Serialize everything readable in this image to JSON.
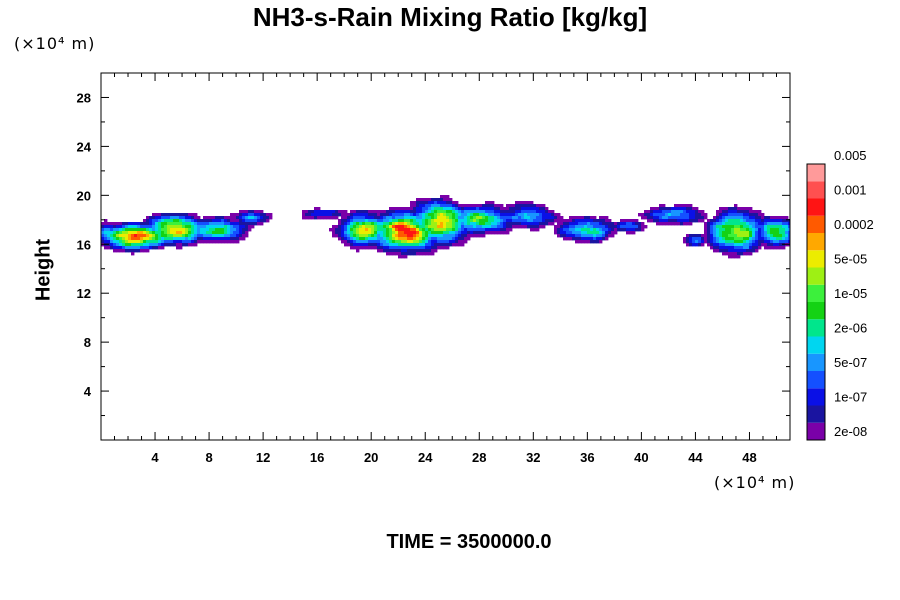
{
  "chart_data": {
    "type": "heatmap",
    "title": "NH3-s-Rain Mixing Ratio [kg/kg]",
    "y_unit_label": "(×10⁴ m)",
    "x_unit_label": "(×10⁴ m)",
    "ylabel": "Height",
    "xlabel": "",
    "footer": "TIME = 3500000.0",
    "xlim": [
      0,
      51
    ],
    "ylim": [
      0,
      30
    ],
    "x_ticks": [
      4,
      8,
      12,
      16,
      20,
      24,
      28,
      32,
      36,
      40,
      44,
      48
    ],
    "y_ticks": [
      4,
      8,
      12,
      16,
      20,
      24,
      28
    ],
    "colorbar": {
      "colors": [
        "#7a00a8",
        "#1a14a0",
        "#0a10e6",
        "#1450ff",
        "#1896ff",
        "#00d6f0",
        "#00e68c",
        "#14d214",
        "#3cf03c",
        "#9ef014",
        "#ecec00",
        "#ffa800",
        "#ff5a00",
        "#ff1414",
        "#ff5050",
        "#ff9a9a"
      ],
      "labels": [
        "2e-08",
        "1e-07",
        "5e-07",
        "2e-06",
        "1e-05",
        "5e-05",
        "0.0002",
        "0.001",
        "0.005"
      ],
      "label_band_index": [
        0,
        2,
        4,
        6,
        8,
        10,
        12,
        14,
        16
      ]
    },
    "cloud_regions": [
      {
        "x": [
          0,
          12.5
        ],
        "y": [
          15.2,
          19.7
        ],
        "peak_x": 3.5,
        "peak_y": 16.5,
        "peak": "orange-red"
      },
      {
        "x": [
          15,
          40
        ],
        "y": [
          14.8,
          20
        ],
        "peak_x": 23,
        "peak_y": 17.5,
        "peak": "red-orange"
      },
      {
        "x": [
          40,
          51
        ],
        "y": [
          15.5,
          19.8
        ],
        "peak_x": 47,
        "peak_y": 17,
        "peak": "yellow-orange"
      }
    ]
  }
}
